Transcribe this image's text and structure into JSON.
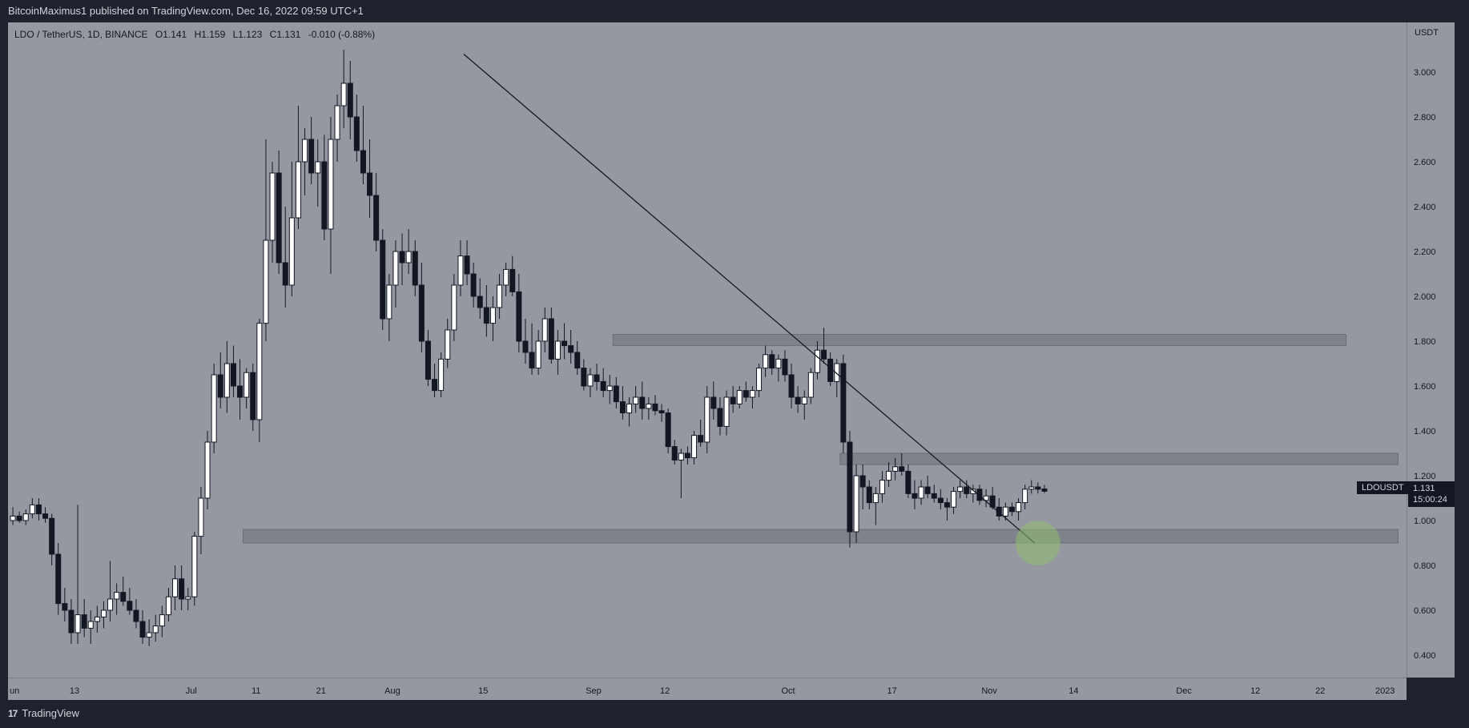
{
  "header": {
    "publisher": "BitcoinMaximus1 published on TradingView.com, Dec 16, 2022 09:59 UTC+1"
  },
  "legend": {
    "symbol": "LDO / TetherUS, 1D, BINANCE",
    "open_label": "O",
    "open": "1.141",
    "high_label": "H",
    "high": "1.159",
    "low_label": "L",
    "low": "1.123",
    "close_label": "C",
    "close": "1.131",
    "change": "-0.010 (-0.88%)"
  },
  "axis": {
    "unit": "USDT"
  },
  "price_tag": {
    "symbol": "LDOUSDT",
    "price": "1.131",
    "countdown": "15:00:24"
  },
  "footer": {
    "brand": "TradingView"
  },
  "colors": {
    "bg": "#9598a1",
    "up": "#ffffff",
    "down": "#131722",
    "zone": "#7b7e87",
    "highlight": "#8fbf6f"
  },
  "chart_data": {
    "type": "candlestick",
    "ylim": [
      0.3,
      3.2
    ],
    "y_ticks": [
      "3.000",
      "2.800",
      "2.600",
      "2.400",
      "2.200",
      "2.000",
      "1.800",
      "1.600",
      "1.400",
      "1.200",
      "1.000",
      "0.800",
      "0.600",
      "0.400"
    ],
    "x_ticks": [
      {
        "label": "un",
        "day": 0
      },
      {
        "label": "13",
        "day": 10
      },
      {
        "label": "Jul",
        "day": 28
      },
      {
        "label": "11",
        "day": 38
      },
      {
        "label": "21",
        "day": 48
      },
      {
        "label": "Aug",
        "day": 59
      },
      {
        "label": "15",
        "day": 73
      },
      {
        "label": "Sep",
        "day": 90
      },
      {
        "label": "12",
        "day": 101
      },
      {
        "label": "Oct",
        "day": 120
      },
      {
        "label": "17",
        "day": 136
      },
      {
        "label": "Nov",
        "day": 151
      },
      {
        "label": "14",
        "day": 164
      },
      {
        "label": "Dec",
        "day": 181
      },
      {
        "label": "12",
        "day": 192
      },
      {
        "label": "22",
        "day": 202
      },
      {
        "label": "2023",
        "day": 212
      }
    ],
    "zones": [
      {
        "from_day": 93,
        "to_day": 206,
        "low": 1.78,
        "high": 1.83
      },
      {
        "from_day": 128,
        "to_day": 214,
        "low": 1.25,
        "high": 1.3
      },
      {
        "from_day": 36,
        "to_day": 214,
        "low": 0.9,
        "high": 0.96
      }
    ],
    "trendline": [
      {
        "day": 70,
        "price": 3.08
      },
      {
        "day": 158,
        "price": 0.9
      }
    ],
    "highlight": {
      "day": 158,
      "price": 0.9
    },
    "candles": [
      [
        1.0,
        1.06,
        0.98,
        1.02
      ],
      [
        1.02,
        1.04,
        0.99,
        1.0
      ],
      [
        1.0,
        1.05,
        0.98,
        1.03
      ],
      [
        1.03,
        1.1,
        1.01,
        1.07
      ],
      [
        1.07,
        1.1,
        1.0,
        1.03
      ],
      [
        1.03,
        1.06,
        0.99,
        1.01
      ],
      [
        1.01,
        1.03,
        0.8,
        0.85
      ],
      [
        0.85,
        0.9,
        0.58,
        0.63
      ],
      [
        0.63,
        0.7,
        0.55,
        0.6
      ],
      [
        0.6,
        0.65,
        0.45,
        0.5
      ],
      [
        0.5,
        1.07,
        0.45,
        0.58
      ],
      [
        0.58,
        0.65,
        0.48,
        0.52
      ],
      [
        0.52,
        0.6,
        0.45,
        0.55
      ],
      [
        0.55,
        0.62,
        0.5,
        0.57
      ],
      [
        0.57,
        0.64,
        0.52,
        0.6
      ],
      [
        0.6,
        0.82,
        0.55,
        0.65
      ],
      [
        0.65,
        0.72,
        0.58,
        0.68
      ],
      [
        0.68,
        0.75,
        0.62,
        0.64
      ],
      [
        0.64,
        0.7,
        0.58,
        0.6
      ],
      [
        0.6,
        0.65,
        0.52,
        0.55
      ],
      [
        0.55,
        0.6,
        0.45,
        0.48
      ],
      [
        0.48,
        0.56,
        0.44,
        0.5
      ],
      [
        0.5,
        0.58,
        0.46,
        0.53
      ],
      [
        0.53,
        0.62,
        0.48,
        0.58
      ],
      [
        0.58,
        0.7,
        0.55,
        0.66
      ],
      [
        0.66,
        0.8,
        0.6,
        0.74
      ],
      [
        0.74,
        0.8,
        0.6,
        0.65
      ],
      [
        0.65,
        0.7,
        0.6,
        0.66
      ],
      [
        0.66,
        0.95,
        0.62,
        0.93
      ],
      [
        0.93,
        1.15,
        0.85,
        1.1
      ],
      [
        1.1,
        1.4,
        1.05,
        1.35
      ],
      [
        1.35,
        1.7,
        1.3,
        1.65
      ],
      [
        1.65,
        1.75,
        1.5,
        1.55
      ],
      [
        1.55,
        1.8,
        1.48,
        1.7
      ],
      [
        1.7,
        1.78,
        1.55,
        1.6
      ],
      [
        1.6,
        1.72,
        1.45,
        1.55
      ],
      [
        1.55,
        1.68,
        1.5,
        1.66
      ],
      [
        1.66,
        1.7,
        1.4,
        1.45
      ],
      [
        1.45,
        1.9,
        1.35,
        1.88
      ],
      [
        1.88,
        2.7,
        1.8,
        2.25
      ],
      [
        2.25,
        2.6,
        2.15,
        2.55
      ],
      [
        2.55,
        2.65,
        2.1,
        2.15
      ],
      [
        2.15,
        2.4,
        1.95,
        2.05
      ],
      [
        2.05,
        2.6,
        2.0,
        2.35
      ],
      [
        2.35,
        2.85,
        2.3,
        2.6
      ],
      [
        2.6,
        2.75,
        2.45,
        2.7
      ],
      [
        2.7,
        2.8,
        2.5,
        2.55
      ],
      [
        2.55,
        2.7,
        2.4,
        2.6
      ],
      [
        2.6,
        2.72,
        2.25,
        2.3
      ],
      [
        2.3,
        2.8,
        2.1,
        2.7
      ],
      [
        2.7,
        2.9,
        2.6,
        2.85
      ],
      [
        2.85,
        3.1,
        2.75,
        2.95
      ],
      [
        2.95,
        3.05,
        2.7,
        2.8
      ],
      [
        2.8,
        2.9,
        2.6,
        2.65
      ],
      [
        2.65,
        2.85,
        2.5,
        2.55
      ],
      [
        2.55,
        2.7,
        2.35,
        2.45
      ],
      [
        2.45,
        2.55,
        2.2,
        2.25
      ],
      [
        2.25,
        2.3,
        1.85,
        1.9
      ],
      [
        1.9,
        2.1,
        1.8,
        2.05
      ],
      [
        2.05,
        2.25,
        1.95,
        2.2
      ],
      [
        2.2,
        2.28,
        2.05,
        2.15
      ],
      [
        2.15,
        2.3,
        2.1,
        2.2
      ],
      [
        2.2,
        2.25,
        2.0,
        2.05
      ],
      [
        2.05,
        2.15,
        1.75,
        1.8
      ],
      [
        1.8,
        1.85,
        1.6,
        1.63
      ],
      [
        1.63,
        1.7,
        1.55,
        1.58
      ],
      [
        1.58,
        1.75,
        1.55,
        1.72
      ],
      [
        1.72,
        1.9,
        1.68,
        1.85
      ],
      [
        1.85,
        2.1,
        1.8,
        2.05
      ],
      [
        2.05,
        2.25,
        2.0,
        2.18
      ],
      [
        2.18,
        2.25,
        2.05,
        2.1
      ],
      [
        2.1,
        2.15,
        1.95,
        2.0
      ],
      [
        2.0,
        2.08,
        1.9,
        1.95
      ],
      [
        1.95,
        2.05,
        1.82,
        1.88
      ],
      [
        1.88,
        2.0,
        1.8,
        1.95
      ],
      [
        1.95,
        2.1,
        1.9,
        2.05
      ],
      [
        2.05,
        2.15,
        2.0,
        2.12
      ],
      [
        2.12,
        2.18,
        2.0,
        2.02
      ],
      [
        2.02,
        2.1,
        1.75,
        1.8
      ],
      [
        1.8,
        1.9,
        1.7,
        1.75
      ],
      [
        1.75,
        1.88,
        1.65,
        1.68
      ],
      [
        1.68,
        1.85,
        1.65,
        1.8
      ],
      [
        1.8,
        1.95,
        1.75,
        1.9
      ],
      [
        1.9,
        1.95,
        1.7,
        1.72
      ],
      [
        1.72,
        1.85,
        1.65,
        1.8
      ],
      [
        1.8,
        1.88,
        1.72,
        1.78
      ],
      [
        1.78,
        1.85,
        1.7,
        1.75
      ],
      [
        1.75,
        1.8,
        1.65,
        1.68
      ],
      [
        1.68,
        1.72,
        1.58,
        1.6
      ],
      [
        1.6,
        1.68,
        1.55,
        1.65
      ],
      [
        1.65,
        1.7,
        1.58,
        1.62
      ],
      [
        1.62,
        1.68,
        1.55,
        1.58
      ],
      [
        1.58,
        1.65,
        1.52,
        1.6
      ],
      [
        1.6,
        1.64,
        1.5,
        1.53
      ],
      [
        1.53,
        1.6,
        1.45,
        1.48
      ],
      [
        1.48,
        1.55,
        1.42,
        1.52
      ],
      [
        1.52,
        1.6,
        1.48,
        1.55
      ],
      [
        1.55,
        1.62,
        1.45,
        1.5
      ],
      [
        1.5,
        1.55,
        1.45,
        1.52
      ],
      [
        1.52,
        1.56,
        1.47,
        1.49
      ],
      [
        1.49,
        1.52,
        1.44,
        1.48
      ],
      [
        1.48,
        1.5,
        1.3,
        1.33
      ],
      [
        1.33,
        1.36,
        1.25,
        1.27
      ],
      [
        1.27,
        1.32,
        1.1,
        1.3
      ],
      [
        1.3,
        1.33,
        1.25,
        1.28
      ],
      [
        1.28,
        1.4,
        1.25,
        1.38
      ],
      [
        1.38,
        1.45,
        1.33,
        1.35
      ],
      [
        1.35,
        1.6,
        1.3,
        1.55
      ],
      [
        1.55,
        1.62,
        1.45,
        1.5
      ],
      [
        1.5,
        1.55,
        1.38,
        1.42
      ],
      [
        1.42,
        1.58,
        1.38,
        1.55
      ],
      [
        1.55,
        1.6,
        1.48,
        1.52
      ],
      [
        1.52,
        1.6,
        1.5,
        1.58
      ],
      [
        1.58,
        1.62,
        1.53,
        1.55
      ],
      [
        1.55,
        1.6,
        1.5,
        1.58
      ],
      [
        1.58,
        1.7,
        1.55,
        1.68
      ],
      [
        1.68,
        1.78,
        1.64,
        1.74
      ],
      [
        1.74,
        1.76,
        1.65,
        1.68
      ],
      [
        1.68,
        1.74,
        1.62,
        1.72
      ],
      [
        1.72,
        1.76,
        1.62,
        1.65
      ],
      [
        1.65,
        1.7,
        1.5,
        1.55
      ],
      [
        1.55,
        1.6,
        1.48,
        1.52
      ],
      [
        1.52,
        1.58,
        1.45,
        1.55
      ],
      [
        1.55,
        1.68,
        1.52,
        1.66
      ],
      [
        1.66,
        1.8,
        1.63,
        1.76
      ],
      [
        1.76,
        1.86,
        1.7,
        1.72
      ],
      [
        1.72,
        1.75,
        1.6,
        1.62
      ],
      [
        1.62,
        1.72,
        1.55,
        1.7
      ],
      [
        1.7,
        1.74,
        1.3,
        1.35
      ],
      [
        1.35,
        1.4,
        0.88,
        0.95
      ],
      [
        0.95,
        1.25,
        0.9,
        1.2
      ],
      [
        1.2,
        1.25,
        1.05,
        1.15
      ],
      [
        1.15,
        1.18,
        1.05,
        1.08
      ],
      [
        1.08,
        1.15,
        0.98,
        1.12
      ],
      [
        1.12,
        1.22,
        1.08,
        1.18
      ],
      [
        1.18,
        1.26,
        1.15,
        1.22
      ],
      [
        1.22,
        1.28,
        1.18,
        1.24
      ],
      [
        1.24,
        1.3,
        1.2,
        1.22
      ],
      [
        1.22,
        1.25,
        1.1,
        1.12
      ],
      [
        1.12,
        1.18,
        1.05,
        1.1
      ],
      [
        1.1,
        1.18,
        1.07,
        1.15
      ],
      [
        1.15,
        1.2,
        1.1,
        1.12
      ],
      [
        1.12,
        1.16,
        1.08,
        1.1
      ],
      [
        1.1,
        1.14,
        1.05,
        1.08
      ],
      [
        1.08,
        1.1,
        1.0,
        1.06
      ],
      [
        1.06,
        1.15,
        1.03,
        1.13
      ],
      [
        1.13,
        1.18,
        1.1,
        1.15
      ],
      [
        1.15,
        1.18,
        1.1,
        1.12
      ],
      [
        1.12,
        1.16,
        1.08,
        1.14
      ],
      [
        1.14,
        1.16,
        1.07,
        1.09
      ],
      [
        1.09,
        1.14,
        1.06,
        1.11
      ],
      [
        1.11,
        1.15,
        1.05,
        1.06
      ],
      [
        1.06,
        1.1,
        1.0,
        1.02
      ],
      [
        1.02,
        1.08,
        1.0,
        1.06
      ],
      [
        1.06,
        1.08,
        1.02,
        1.04
      ],
      [
        1.04,
        1.1,
        1.0,
        1.08
      ],
      [
        1.08,
        1.16,
        1.05,
        1.14
      ],
      [
        1.14,
        1.18,
        1.12,
        1.15
      ],
      [
        1.15,
        1.17,
        1.12,
        1.14
      ],
      [
        1.141,
        1.159,
        1.123,
        1.131
      ]
    ]
  }
}
